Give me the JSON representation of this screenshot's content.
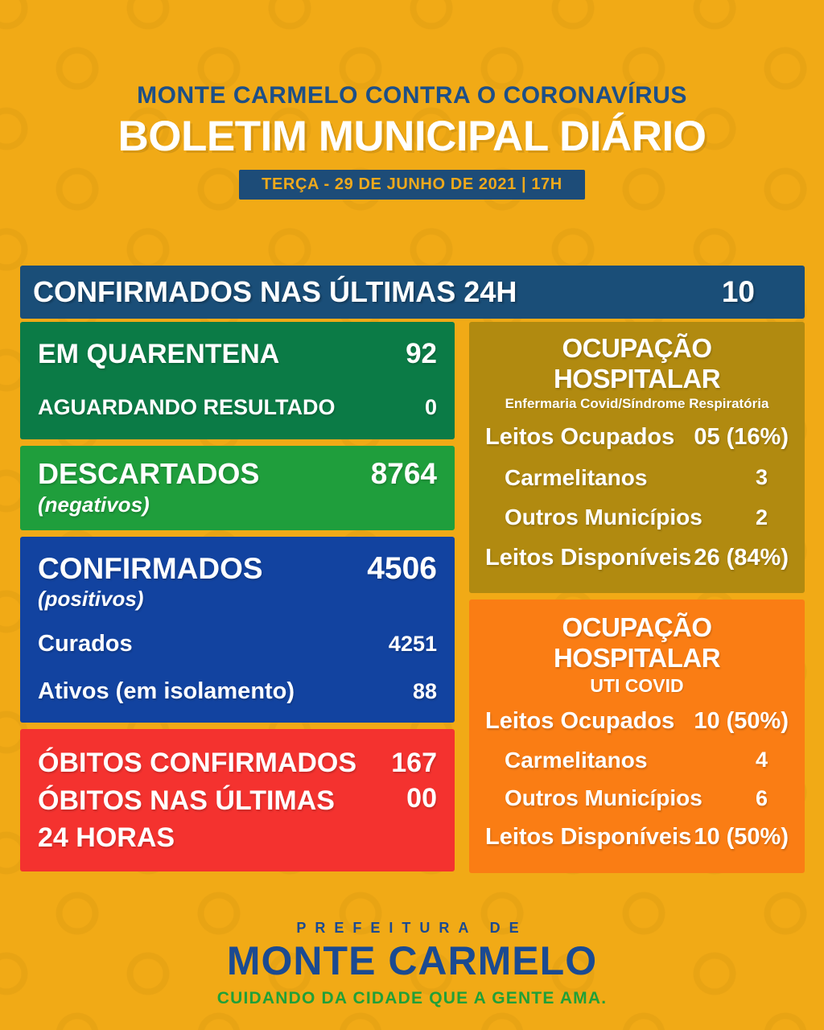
{
  "header": {
    "supertitle": "MONTE CARMELO CONTRA O CORONAVÍRUS",
    "title": "BOLETIM MUNICIPAL DIÁRIO",
    "date_badge": "TERÇA - 29 DE JUNHO DE 2021 | 17H"
  },
  "summary_bar": {
    "label": "CONFIRMADOS NAS ÚLTIMAS 24H",
    "value": "10"
  },
  "left_column": {
    "quarantine_box": {
      "rows": [
        {
          "label": "EM QUARENTENA",
          "value": "92"
        },
        {
          "label": "AGUARDANDO RESULTADO",
          "value": "0"
        }
      ]
    },
    "discarded_box": {
      "label": "DESCARTADOS",
      "sublabel": "(negativos)",
      "value": "8764"
    },
    "confirmed_box": {
      "label": "CONFIRMADOS",
      "sublabel": "(positivos)",
      "value": "4506",
      "rows": [
        {
          "label": "Curados",
          "value": "4251"
        },
        {
          "label": "Ativos (em isolamento)",
          "value": "88"
        }
      ]
    },
    "deaths_box": {
      "rows": [
        {
          "label": "ÓBITOS CONFIRMADOS",
          "value": "167"
        },
        {
          "label": "ÓBITOS NAS ÚLTIMAS 24 HORAS",
          "value": "00"
        }
      ]
    }
  },
  "right_column": {
    "ward_box": {
      "title": "OCUPAÇÃO HOSPITALAR",
      "subtitle": "Enfermaria Covid/Síndrome Respiratória",
      "rows": [
        {
          "label": "Leitos Ocupados",
          "value": "05 (16%)"
        },
        {
          "label": "Carmelitanos",
          "value": "3"
        },
        {
          "label": "Outros Municípios",
          "value": "2"
        },
        {
          "label": "Leitos Disponíveis",
          "value": "26 (84%)"
        }
      ]
    },
    "icu_box": {
      "title": "OCUPAÇÃO HOSPITALAR",
      "subtitle": "UTI COVID",
      "rows": [
        {
          "label": "Leitos Ocupados",
          "value": "10 (50%)"
        },
        {
          "label": "Carmelitanos",
          "value": "4"
        },
        {
          "label": "Outros Municípios",
          "value": "6"
        },
        {
          "label": "Leitos Disponíveis",
          "value": "10 (50%)"
        }
      ]
    }
  },
  "footer": {
    "line1": "PREFEITURA DE",
    "line2": "MONTE CARMELO",
    "line3": "CUIDANDO DA CIDADE QUE A GENTE AMA."
  },
  "colors": {
    "background": "#f1aa16",
    "header_text": "#1d4f87",
    "badge_bg": "#1d4c78",
    "badge_text": "#efa91c",
    "bar_bg": "#1a4e78",
    "quarantine_green": "#0b7b46",
    "discarded_green": "#1f9e3c",
    "confirmed_blue": "#1243a0",
    "deaths_red": "#f4322f",
    "ward_gold": "#b18a10",
    "icu_orange": "#fa7d14",
    "footer_blue": "#1b4a91",
    "footer_green": "#21a038"
  }
}
